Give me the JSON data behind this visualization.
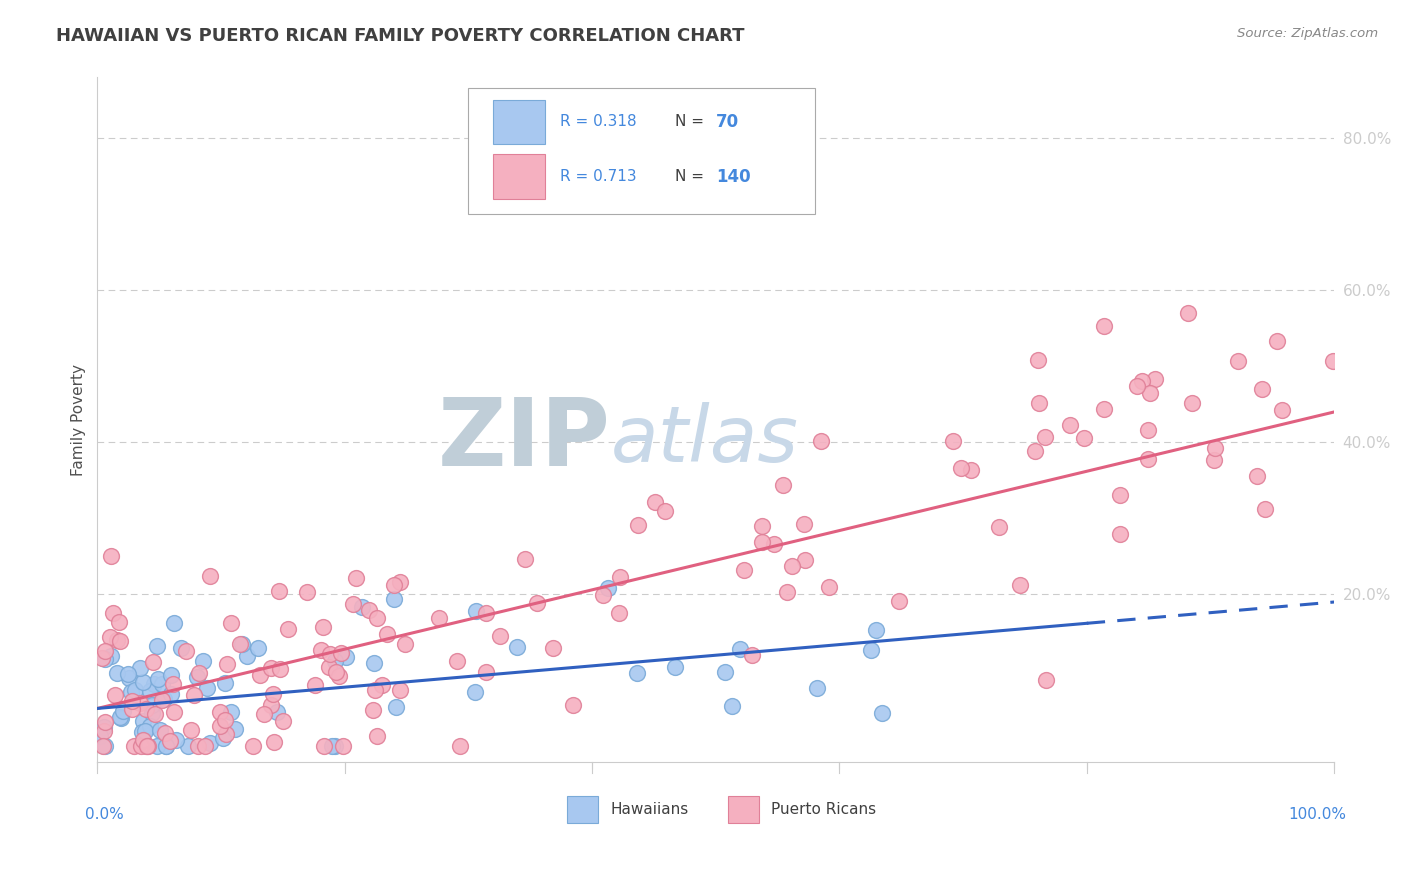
{
  "title": "HAWAIIAN VS PUERTO RICAN FAMILY POVERTY CORRELATION CHART",
  "source": "Source: ZipAtlas.com",
  "ylabel": "Family Poverty",
  "hawaiian_color": "#A8C8F0",
  "hawaiian_edge": "#7AAAD8",
  "puerto_rican_color": "#F5B0C0",
  "puerto_rican_edge": "#E08098",
  "blue_line_color": "#3060C0",
  "pink_line_color": "#E06080",
  "background": "#FFFFFF",
  "grid_color": "#CCCCCC",
  "title_color": "#404040",
  "source_color": "#888888",
  "tick_color": "#4488DD",
  "xlim": [
    0,
    100
  ],
  "ylim": [
    -2,
    88
  ],
  "ytick_positions": [
    20,
    40,
    60,
    80
  ],
  "ytick_labels": [
    "20.0%",
    "40.0%",
    "60.0%",
    "80.0%"
  ],
  "blue_reg": [
    5.0,
    19.0
  ],
  "pink_reg": [
    5.0,
    44.0
  ],
  "blue_dashed_start_x": 80,
  "watermark_zip_color": "#C0CED8",
  "watermark_atlas_color": "#C8D8E8"
}
